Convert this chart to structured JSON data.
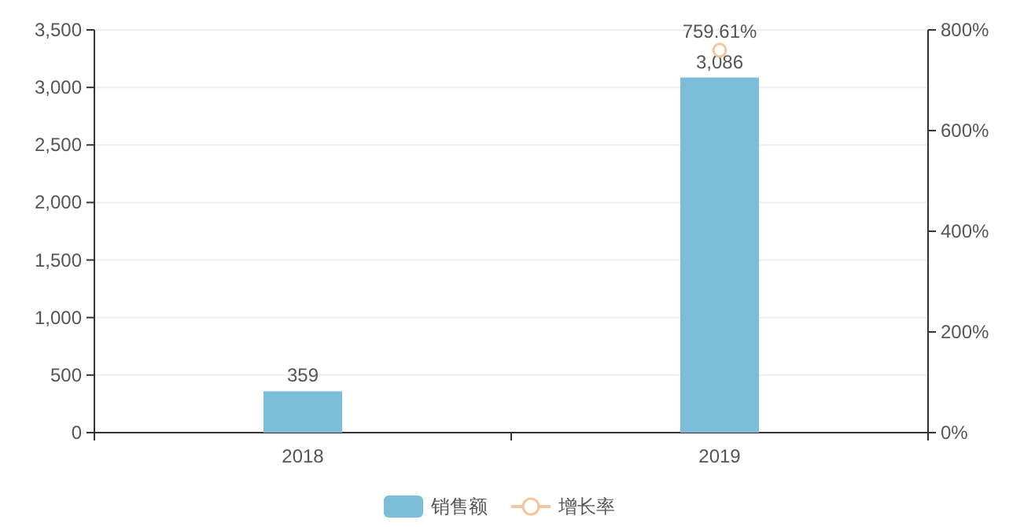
{
  "chart_data": {
    "type": "bar",
    "categories": [
      "2018",
      "2019"
    ],
    "series": [
      {
        "name": "销售额",
        "color": "#7cbdd9",
        "values": [
          359,
          3086
        ],
        "value_labels": [
          "359",
          "3,086"
        ]
      },
      {
        "name": "增长率",
        "type": "line",
        "axis": "y2",
        "color": "#f2c59c",
        "marker": "circle",
        "values": [
          null,
          759.61
        ],
        "value_labels": [
          null,
          "759.61%"
        ]
      }
    ],
    "ylim": [
      0,
      3500
    ],
    "yticks": [
      0,
      {
        "value": 500,
        "label": "500"
      },
      {
        "value": 1000,
        "label": "1,000"
      },
      {
        "value": 1500,
        "label": "1,500"
      },
      {
        "value": 2000,
        "label": "2,000"
      },
      {
        "value": 2500,
        "label": "2,500"
      },
      {
        "value": 3000,
        "label": "3,000"
      },
      {
        "value": 3500,
        "label": "3,500"
      }
    ],
    "y2lim": [
      0,
      800
    ],
    "y2ticks": [
      {
        "value": 0,
        "label": "0%"
      },
      {
        "value": 200,
        "label": "200%"
      },
      {
        "value": 400,
        "label": "400%"
      },
      {
        "value": 600,
        "label": "600%"
      },
      {
        "value": 800,
        "label": "800%"
      }
    ],
    "grid": "y",
    "legend": "bottom"
  }
}
